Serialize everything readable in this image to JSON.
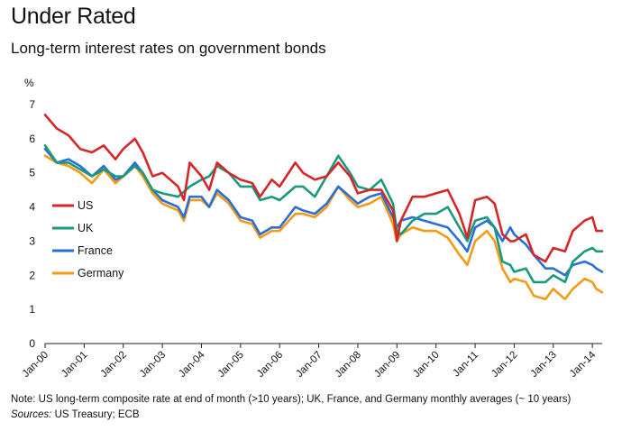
{
  "title": "Under Rated",
  "subtitle": "Long-term interest rates on government bonds",
  "note": "Note: US long-term composite rate at end of month (>10 years); UK, France, and Germany monthly averages (~ 10 years)",
  "sources_label": "Sources:",
  "sources_text": " US Treasury; ECB",
  "chart_data": {
    "type": "line",
    "title": "Long-term interest rates on government bonds",
    "ylabel": "%",
    "xlabel": "",
    "ylim": [
      0,
      7
    ],
    "yticks": [
      0,
      1,
      2,
      3,
      4,
      5,
      6,
      7
    ],
    "grid": false,
    "legend_position": "left-middle",
    "x_start": 2000.0,
    "x_end": 2014.25,
    "x_tick_labels": [
      "Jan-00",
      "Jan-01",
      "Jan-02",
      "Jan-03",
      "Jan-04",
      "Jan-05",
      "Jan-06",
      "Jan-07",
      "Jan-08",
      "Jan-09",
      "Jan-10",
      "Jan-11",
      "Jan-12",
      "Jan-13",
      "Jan-14"
    ],
    "series": [
      {
        "name": "US",
        "color": "#d62728",
        "points": [
          [
            2000.0,
            6.7
          ],
          [
            2000.3,
            6.3
          ],
          [
            2000.6,
            6.1
          ],
          [
            2000.9,
            5.7
          ],
          [
            2001.2,
            5.6
          ],
          [
            2001.5,
            5.8
          ],
          [
            2001.8,
            5.4
          ],
          [
            2002.0,
            5.7
          ],
          [
            2002.3,
            6.0
          ],
          [
            2002.5,
            5.6
          ],
          [
            2002.75,
            4.9
          ],
          [
            2003.0,
            5.0
          ],
          [
            2003.4,
            4.6
          ],
          [
            2003.55,
            4.2
          ],
          [
            2003.7,
            5.3
          ],
          [
            2004.0,
            4.9
          ],
          [
            2004.2,
            4.5
          ],
          [
            2004.4,
            5.3
          ],
          [
            2004.7,
            5.0
          ],
          [
            2005.0,
            4.8
          ],
          [
            2005.3,
            4.7
          ],
          [
            2005.5,
            4.3
          ],
          [
            2005.8,
            4.8
          ],
          [
            2006.0,
            4.6
          ],
          [
            2006.4,
            5.3
          ],
          [
            2006.6,
            5.0
          ],
          [
            2006.9,
            4.8
          ],
          [
            2007.2,
            4.9
          ],
          [
            2007.5,
            5.3
          ],
          [
            2007.8,
            4.9
          ],
          [
            2008.0,
            4.4
          ],
          [
            2008.3,
            4.5
          ],
          [
            2008.6,
            4.5
          ],
          [
            2008.9,
            3.9
          ],
          [
            2009.0,
            3.0
          ],
          [
            2009.1,
            3.6
          ],
          [
            2009.4,
            4.3
          ],
          [
            2009.7,
            4.3
          ],
          [
            2010.0,
            4.4
          ],
          [
            2010.3,
            4.5
          ],
          [
            2010.6,
            3.8
          ],
          [
            2010.8,
            3.1
          ],
          [
            2011.0,
            4.2
          ],
          [
            2011.3,
            4.3
          ],
          [
            2011.5,
            4.1
          ],
          [
            2011.7,
            3.2
          ],
          [
            2011.9,
            3.0
          ],
          [
            2012.0,
            3.0
          ],
          [
            2012.3,
            3.2
          ],
          [
            2012.5,
            2.6
          ],
          [
            2012.8,
            2.4
          ],
          [
            2013.0,
            2.8
          ],
          [
            2013.3,
            2.7
          ],
          [
            2013.5,
            3.3
          ],
          [
            2013.8,
            3.6
          ],
          [
            2014.0,
            3.7
          ],
          [
            2014.1,
            3.3
          ],
          [
            2014.25,
            3.3
          ]
        ]
      },
      {
        "name": "UK",
        "color": "#1a9a7a",
        "points": [
          [
            2000.0,
            5.8
          ],
          [
            2000.3,
            5.3
          ],
          [
            2000.6,
            5.3
          ],
          [
            2000.9,
            5.1
          ],
          [
            2001.2,
            4.9
          ],
          [
            2001.5,
            5.1
          ],
          [
            2001.8,
            4.9
          ],
          [
            2002.0,
            4.9
          ],
          [
            2002.3,
            5.2
          ],
          [
            2002.5,
            5.0
          ],
          [
            2002.75,
            4.5
          ],
          [
            2003.0,
            4.4
          ],
          [
            2003.4,
            4.3
          ],
          [
            2003.7,
            4.6
          ],
          [
            2004.0,
            4.8
          ],
          [
            2004.2,
            4.9
          ],
          [
            2004.4,
            5.2
          ],
          [
            2004.7,
            5.0
          ],
          [
            2005.0,
            4.6
          ],
          [
            2005.3,
            4.6
          ],
          [
            2005.5,
            4.2
          ],
          [
            2005.8,
            4.3
          ],
          [
            2006.0,
            4.2
          ],
          [
            2006.4,
            4.6
          ],
          [
            2006.6,
            4.6
          ],
          [
            2006.9,
            4.3
          ],
          [
            2007.2,
            4.9
          ],
          [
            2007.5,
            5.5
          ],
          [
            2007.8,
            5.0
          ],
          [
            2008.0,
            4.6
          ],
          [
            2008.3,
            4.5
          ],
          [
            2008.6,
            4.8
          ],
          [
            2008.9,
            4.1
          ],
          [
            2009.0,
            3.3
          ],
          [
            2009.1,
            3.2
          ],
          [
            2009.4,
            3.6
          ],
          [
            2009.7,
            3.8
          ],
          [
            2010.0,
            3.8
          ],
          [
            2010.3,
            4.0
          ],
          [
            2010.6,
            3.4
          ],
          [
            2010.8,
            3.0
          ],
          [
            2011.0,
            3.6
          ],
          [
            2011.3,
            3.7
          ],
          [
            2011.5,
            3.4
          ],
          [
            2011.7,
            2.4
          ],
          [
            2011.9,
            2.3
          ],
          [
            2012.0,
            2.1
          ],
          [
            2012.3,
            2.2
          ],
          [
            2012.5,
            1.8
          ],
          [
            2012.8,
            1.8
          ],
          [
            2013.0,
            2.0
          ],
          [
            2013.3,
            1.8
          ],
          [
            2013.5,
            2.4
          ],
          [
            2013.8,
            2.7
          ],
          [
            2014.0,
            2.8
          ],
          [
            2014.1,
            2.7
          ],
          [
            2014.25,
            2.7
          ]
        ]
      },
      {
        "name": "France",
        "color": "#2a6fd6",
        "points": [
          [
            2000.0,
            5.7
          ],
          [
            2000.3,
            5.3
          ],
          [
            2000.6,
            5.4
          ],
          [
            2000.9,
            5.2
          ],
          [
            2001.2,
            4.9
          ],
          [
            2001.5,
            5.2
          ],
          [
            2001.8,
            4.8
          ],
          [
            2002.0,
            4.9
          ],
          [
            2002.3,
            5.3
          ],
          [
            2002.5,
            5.0
          ],
          [
            2002.75,
            4.5
          ],
          [
            2003.0,
            4.2
          ],
          [
            2003.4,
            4.0
          ],
          [
            2003.55,
            3.7
          ],
          [
            2003.7,
            4.3
          ],
          [
            2004.0,
            4.3
          ],
          [
            2004.2,
            4.0
          ],
          [
            2004.4,
            4.5
          ],
          [
            2004.7,
            4.2
          ],
          [
            2005.0,
            3.7
          ],
          [
            2005.3,
            3.6
          ],
          [
            2005.5,
            3.2
          ],
          [
            2005.8,
            3.4
          ],
          [
            2006.0,
            3.4
          ],
          [
            2006.4,
            4.0
          ],
          [
            2006.6,
            3.9
          ],
          [
            2006.9,
            3.8
          ],
          [
            2007.2,
            4.1
          ],
          [
            2007.5,
            4.6
          ],
          [
            2007.8,
            4.3
          ],
          [
            2008.0,
            4.1
          ],
          [
            2008.3,
            4.3
          ],
          [
            2008.6,
            4.4
          ],
          [
            2008.9,
            3.7
          ],
          [
            2009.0,
            3.4
          ],
          [
            2009.1,
            3.6
          ],
          [
            2009.4,
            3.7
          ],
          [
            2009.7,
            3.6
          ],
          [
            2010.0,
            3.5
          ],
          [
            2010.3,
            3.4
          ],
          [
            2010.6,
            3.0
          ],
          [
            2010.8,
            2.7
          ],
          [
            2011.0,
            3.4
          ],
          [
            2011.3,
            3.6
          ],
          [
            2011.5,
            3.4
          ],
          [
            2011.7,
            3.0
          ],
          [
            2011.9,
            3.4
          ],
          [
            2012.0,
            3.2
          ],
          [
            2012.3,
            2.9
          ],
          [
            2012.5,
            2.6
          ],
          [
            2012.8,
            2.2
          ],
          [
            2013.0,
            2.2
          ],
          [
            2013.3,
            2.0
          ],
          [
            2013.5,
            2.3
          ],
          [
            2013.8,
            2.4
          ],
          [
            2014.0,
            2.3
          ],
          [
            2014.1,
            2.2
          ],
          [
            2014.25,
            2.1
          ]
        ]
      },
      {
        "name": "Germany",
        "color": "#f59a14",
        "points": [
          [
            2000.0,
            5.5
          ],
          [
            2000.3,
            5.3
          ],
          [
            2000.6,
            5.2
          ],
          [
            2000.9,
            5.0
          ],
          [
            2001.2,
            4.7
          ],
          [
            2001.5,
            5.1
          ],
          [
            2001.8,
            4.7
          ],
          [
            2002.0,
            4.9
          ],
          [
            2002.3,
            5.2
          ],
          [
            2002.5,
            4.9
          ],
          [
            2002.75,
            4.4
          ],
          [
            2003.0,
            4.1
          ],
          [
            2003.4,
            3.9
          ],
          [
            2003.55,
            3.6
          ],
          [
            2003.7,
            4.2
          ],
          [
            2004.0,
            4.2
          ],
          [
            2004.2,
            4.0
          ],
          [
            2004.4,
            4.4
          ],
          [
            2004.7,
            4.1
          ],
          [
            2005.0,
            3.6
          ],
          [
            2005.3,
            3.5
          ],
          [
            2005.5,
            3.1
          ],
          [
            2005.8,
            3.3
          ],
          [
            2006.0,
            3.3
          ],
          [
            2006.4,
            3.8
          ],
          [
            2006.6,
            3.8
          ],
          [
            2006.9,
            3.7
          ],
          [
            2007.2,
            4.0
          ],
          [
            2007.5,
            4.6
          ],
          [
            2007.8,
            4.2
          ],
          [
            2008.0,
            4.0
          ],
          [
            2008.3,
            4.1
          ],
          [
            2008.6,
            4.3
          ],
          [
            2008.9,
            3.5
          ],
          [
            2009.0,
            3.0
          ],
          [
            2009.1,
            3.2
          ],
          [
            2009.4,
            3.4
          ],
          [
            2009.7,
            3.3
          ],
          [
            2010.0,
            3.3
          ],
          [
            2010.3,
            3.1
          ],
          [
            2010.6,
            2.6
          ],
          [
            2010.8,
            2.3
          ],
          [
            2011.0,
            3.0
          ],
          [
            2011.3,
            3.3
          ],
          [
            2011.5,
            3.0
          ],
          [
            2011.7,
            2.2
          ],
          [
            2011.9,
            1.8
          ],
          [
            2012.0,
            1.9
          ],
          [
            2012.3,
            1.8
          ],
          [
            2012.5,
            1.4
          ],
          [
            2012.8,
            1.3
          ],
          [
            2013.0,
            1.6
          ],
          [
            2013.3,
            1.3
          ],
          [
            2013.5,
            1.6
          ],
          [
            2013.8,
            1.9
          ],
          [
            2014.0,
            1.8
          ],
          [
            2014.1,
            1.6
          ],
          [
            2014.25,
            1.5
          ]
        ]
      }
    ]
  }
}
